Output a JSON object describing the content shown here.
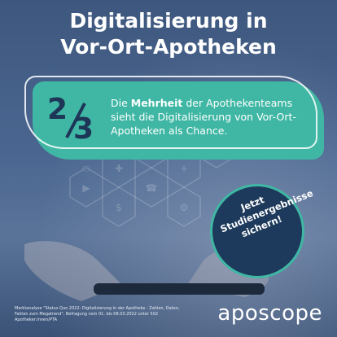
{
  "title": {
    "line1": "Digitalisierung in",
    "line2": "Vor-Ort-Apotheken"
  },
  "stat": {
    "numerator": "2",
    "denominator": "3",
    "text_prefix": "Die ",
    "text_bold": "Mehrheit",
    "text_suffix": " der Apothekenteams sieht die Digitalisierung von Vor-Ort-Apotheken als Chance."
  },
  "badge": {
    "line1": "Jetzt",
    "line2": "Studienergebnisse",
    "line3": "sichern!"
  },
  "footnote": "Marktanalyse \"Status Quo 2022: Digitalisierung in der Apotheke - Zahlen, Daten, Fakten zum Megatrend\", Befragung vom 01. bis 08.03.2022 unter 502 Apotheker:innen/PTA",
  "logo": "aposcope",
  "colors": {
    "teal": "#3fb7a4",
    "navy": "#1d3a5c",
    "background": "#4a6690",
    "white": "#ffffff"
  },
  "icons": [
    "heart-icon",
    "plus-icon",
    "medicine-icon",
    "phone-icon",
    "cart-icon",
    "video-icon",
    "gear-icon",
    "dollar-icon",
    "pill-icon",
    "capsule-icon"
  ]
}
